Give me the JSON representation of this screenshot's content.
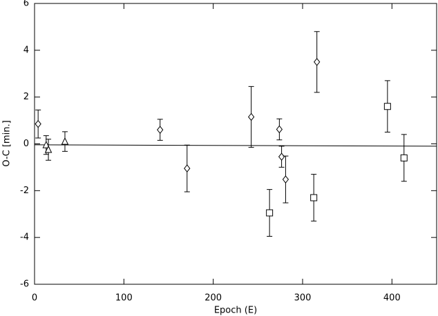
{
  "chart_data": {
    "type": "scatter",
    "xlabel": "Epoch (E)",
    "ylabel": "O-C [min.]",
    "xlim": [
      0,
      450
    ],
    "ylim": [
      -6,
      6
    ],
    "xticks": [
      0,
      100,
      200,
      300,
      400
    ],
    "yticks": [
      -6,
      -4,
      -2,
      0,
      2,
      4,
      6
    ],
    "color": "#000000",
    "series": [
      {
        "marker": "diamond",
        "x": [
          4,
          140.5,
          170.7,
          242.5,
          274,
          276.5,
          281,
          316
        ],
        "values": [
          0.85,
          0.6,
          -1.05,
          1.15,
          0.62,
          -0.55,
          -1.52,
          3.5
        ],
        "errors": [
          0.6,
          0.45,
          1.0,
          1.3,
          0.45,
          0.45,
          1.0,
          1.3
        ]
      },
      {
        "marker": "triangle",
        "x": [
          13,
          15.5,
          34
        ],
        "values": [
          -0.05,
          -0.25,
          0.1
        ],
        "errors": [
          0.4,
          0.45,
          0.42
        ]
      },
      {
        "marker": "square",
        "x": [
          263,
          312.5,
          395,
          413.5
        ],
        "values": [
          -2.95,
          -2.3,
          1.6,
          -0.6
        ],
        "errors": [
          1.0,
          1.0,
          1.1,
          1.0
        ]
      }
    ],
    "fit": {
      "x": [
        0,
        450
      ],
      "values": [
        -0.04,
        -0.1
      ]
    }
  }
}
